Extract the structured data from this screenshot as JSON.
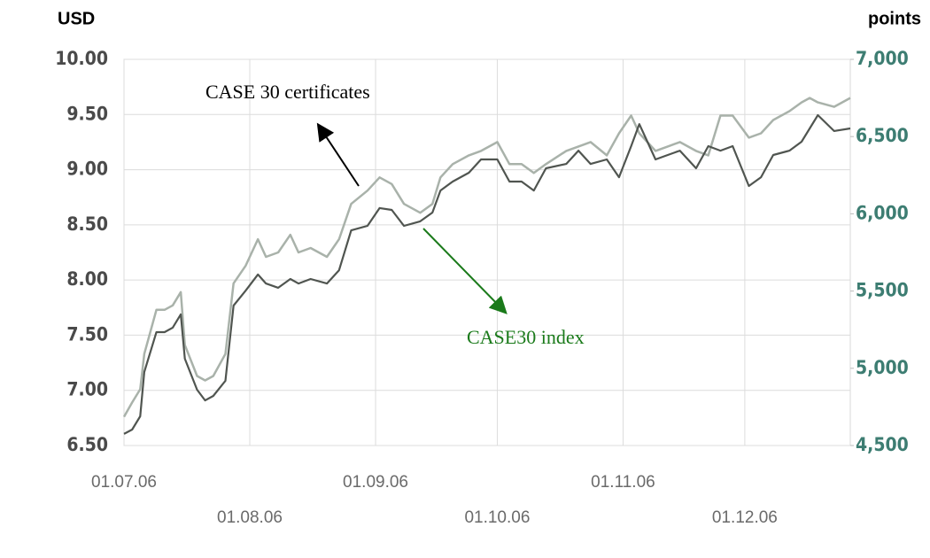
{
  "chart_data": {
    "type": "line",
    "y_label": "USD",
    "y2_label": "points",
    "x": [
      "2006-07-01",
      "2006-07-03",
      "2006-07-05",
      "2006-07-06",
      "2006-07-09",
      "2006-07-11",
      "2006-07-13",
      "2006-07-15",
      "2006-07-16",
      "2006-07-19",
      "2006-07-21",
      "2006-07-23",
      "2006-07-26",
      "2006-07-28",
      "2006-07-31",
      "2006-08-03",
      "2006-08-05",
      "2006-08-08",
      "2006-08-11",
      "2006-08-13",
      "2006-08-16",
      "2006-08-20",
      "2006-08-23",
      "2006-08-26",
      "2006-08-30",
      "2006-09-02",
      "2006-09-05",
      "2006-09-08",
      "2006-09-12",
      "2006-09-15",
      "2006-09-17",
      "2006-09-20",
      "2006-09-24",
      "2006-09-27",
      "2006-10-01",
      "2006-10-04",
      "2006-10-07",
      "2006-10-10",
      "2006-10-13",
      "2006-10-18",
      "2006-10-21",
      "2006-10-24",
      "2006-10-28",
      "2006-10-31",
      "2006-11-03",
      "2006-11-05",
      "2006-11-09",
      "2006-11-12",
      "2006-11-15",
      "2006-11-19",
      "2006-11-22",
      "2006-11-25",
      "2006-11-28",
      "2006-12-02",
      "2006-12-05",
      "2006-12-08",
      "2006-12-12",
      "2006-12-15",
      "2006-12-17",
      "2006-12-19",
      "2006-12-23",
      "2006-12-27"
    ],
    "series": [
      {
        "name": "CASE 30 certificates",
        "color": "#a9b2aa",
        "label_color": "#000000",
        "axis": "y",
        "values": [
          6.76,
          6.89,
          7.01,
          7.33,
          7.73,
          7.73,
          7.77,
          7.89,
          7.41,
          7.13,
          7.09,
          7.13,
          7.33,
          7.97,
          8.13,
          8.37,
          8.21,
          8.25,
          8.41,
          8.25,
          8.29,
          8.21,
          8.37,
          8.69,
          8.81,
          8.93,
          8.87,
          8.69,
          8.61,
          8.69,
          8.93,
          9.05,
          9.13,
          9.17,
          9.25,
          9.05,
          9.05,
          8.97,
          9.05,
          9.17,
          9.21,
          9.25,
          9.13,
          9.33,
          9.49,
          9.33,
          9.17,
          9.21,
          9.25,
          9.17,
          9.13,
          9.49,
          9.49,
          9.29,
          9.33,
          9.45,
          9.53,
          9.61,
          9.65,
          9.61,
          9.57,
          9.65
        ]
      },
      {
        "name": "CASE30 index",
        "color": "#505550",
        "label_color": "#1a7a1a",
        "axis": "y2",
        "values": [
          4575,
          4603,
          4689,
          4976,
          5234,
          5234,
          5263,
          5349,
          5062,
          4861,
          4792,
          4821,
          4919,
          5406,
          5503,
          5607,
          5549,
          5521,
          5578,
          5549,
          5578,
          5549,
          5635,
          5893,
          5922,
          6037,
          6025,
          5922,
          5951,
          6008,
          6151,
          6209,
          6266,
          6352,
          6352,
          6209,
          6209,
          6151,
          6295,
          6323,
          6409,
          6323,
          6352,
          6237,
          6438,
          6581,
          6352,
          6381,
          6409,
          6295,
          6438,
          6409,
          6438,
          6180,
          6237,
          6381,
          6409,
          6467,
          6553,
          6639,
          6536,
          6553
        ]
      }
    ],
    "xlim": [
      "2006-07-01",
      "2006-12-27"
    ],
    "xticks": [
      {
        "value": "2006-07-01",
        "label": "01.07.06"
      },
      {
        "value": "2006-08-01",
        "label": "01.08.06"
      },
      {
        "value": "2006-09-01",
        "label": "01.09.06"
      },
      {
        "value": "2006-10-01",
        "label": "01.10.06"
      },
      {
        "value": "2006-11-01",
        "label": "01.11.06"
      },
      {
        "value": "2006-12-01",
        "label": "01.12.06"
      }
    ],
    "ylim": [
      6.5,
      10
    ],
    "yticks": [
      {
        "value": 6.5,
        "label": "6.50"
      },
      {
        "value": 7,
        "label": "7.00"
      },
      {
        "value": 7.5,
        "label": "7.50"
      },
      {
        "value": 8,
        "label": "8.00"
      },
      {
        "value": 8.5,
        "label": "8.50"
      },
      {
        "value": 9,
        "label": "9.00"
      },
      {
        "value": 9.5,
        "label": "9.50"
      },
      {
        "value": 10,
        "label": "10.00"
      }
    ],
    "y2lim": [
      4500,
      7000
    ],
    "y2ticks": [
      {
        "value": 4500,
        "label": "4,500"
      },
      {
        "value": 5000,
        "label": "5,000"
      },
      {
        "value": 5500,
        "label": "5,500"
      },
      {
        "value": 6000,
        "label": "6,000"
      },
      {
        "value": 6500,
        "label": "6,500"
      },
      {
        "value": 7000,
        "label": "7,000"
      }
    ],
    "grid": true
  }
}
